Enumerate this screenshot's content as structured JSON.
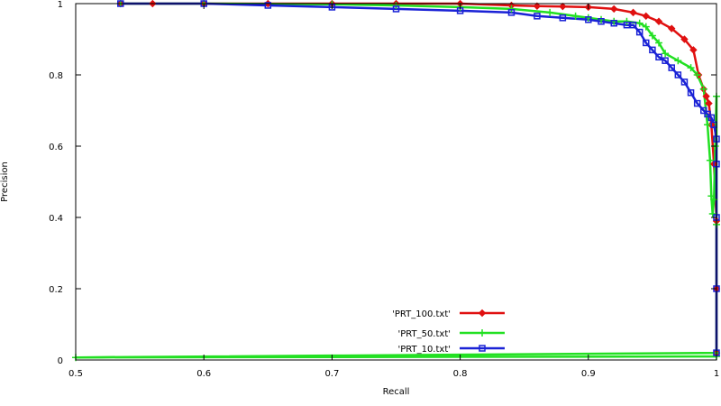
{
  "chart_data": {
    "type": "line",
    "title": "",
    "xlabel": "Recall",
    "ylabel": "Precision",
    "xlim": [
      0.5,
      1.0
    ],
    "ylim": [
      0,
      1
    ],
    "x_ticks": [
      "0.5",
      "0.6",
      "0.7",
      "0.8",
      "0.9",
      "1"
    ],
    "y_ticks": [
      "0",
      "0.2",
      "0.4",
      "0.6",
      "0.8",
      "1"
    ],
    "x_tick_values": [
      0.5,
      0.6,
      0.7,
      0.8,
      0.9,
      1.0
    ],
    "y_tick_values": [
      0,
      0.2,
      0.4,
      0.6,
      0.8,
      1.0
    ],
    "grid": false,
    "legend_position": "bottom-center",
    "series": [
      {
        "name": "'PRT_100.txt'",
        "color": "#e01010",
        "marker": "diamond",
        "x": [
          0.535,
          0.56,
          0.6,
          0.65,
          0.7,
          0.75,
          0.8,
          0.84,
          0.86,
          0.88,
          0.9,
          0.92,
          0.935,
          0.945,
          0.955,
          0.965,
          0.975,
          0.982,
          0.986,
          0.99,
          0.992,
          0.994,
          0.996,
          0.998,
          1.0,
          1.0,
          1.0
        ],
        "y": [
          1.0,
          1.0,
          1.0,
          1.0,
          1.0,
          1.0,
          1.0,
          0.995,
          0.993,
          0.992,
          0.99,
          0.985,
          0.975,
          0.965,
          0.95,
          0.93,
          0.9,
          0.87,
          0.8,
          0.76,
          0.74,
          0.72,
          0.66,
          0.55,
          0.39,
          0.2,
          0.02
        ]
      },
      {
        "name": "'PRT_50.txt'",
        "color": "#22e022",
        "marker": "plus",
        "x": [
          0.535,
          0.6,
          0.7,
          0.75,
          0.8,
          0.84,
          0.87,
          0.89,
          0.9,
          0.91,
          0.92,
          0.93,
          0.94,
          0.945,
          0.95,
          0.955,
          0.96,
          0.97,
          0.98,
          0.985,
          0.99,
          0.993,
          0.995,
          0.996,
          0.997,
          0.998,
          0.999,
          1.0,
          1.0,
          1.0,
          0.5,
          1.0
        ],
        "y": [
          1.0,
          1.0,
          0.998,
          0.995,
          0.99,
          0.985,
          0.975,
          0.965,
          0.96,
          0.955,
          0.95,
          0.95,
          0.945,
          0.935,
          0.91,
          0.89,
          0.86,
          0.84,
          0.82,
          0.8,
          0.76,
          0.66,
          0.56,
          0.46,
          0.41,
          0.45,
          0.6,
          0.74,
          0.38,
          0.02,
          0.007,
          0.01
        ]
      },
      {
        "name": "'PRT_10.txt'",
        "color": "#1a22d6",
        "marker": "square",
        "x": [
          0.535,
          0.6,
          0.65,
          0.7,
          0.75,
          0.8,
          0.84,
          0.86,
          0.88,
          0.9,
          0.91,
          0.92,
          0.93,
          0.935,
          0.94,
          0.945,
          0.95,
          0.955,
          0.96,
          0.965,
          0.97,
          0.975,
          0.98,
          0.985,
          0.99,
          0.993,
          0.996,
          0.998,
          1.0,
          1.0,
          1.0,
          1.0,
          1.0
        ],
        "y": [
          1.0,
          1.0,
          0.995,
          0.99,
          0.985,
          0.98,
          0.975,
          0.965,
          0.96,
          0.955,
          0.95,
          0.945,
          0.94,
          0.94,
          0.92,
          0.89,
          0.87,
          0.85,
          0.84,
          0.82,
          0.8,
          0.78,
          0.75,
          0.72,
          0.7,
          0.69,
          0.68,
          0.66,
          0.62,
          0.55,
          0.4,
          0.2,
          0.02
        ]
      }
    ]
  }
}
